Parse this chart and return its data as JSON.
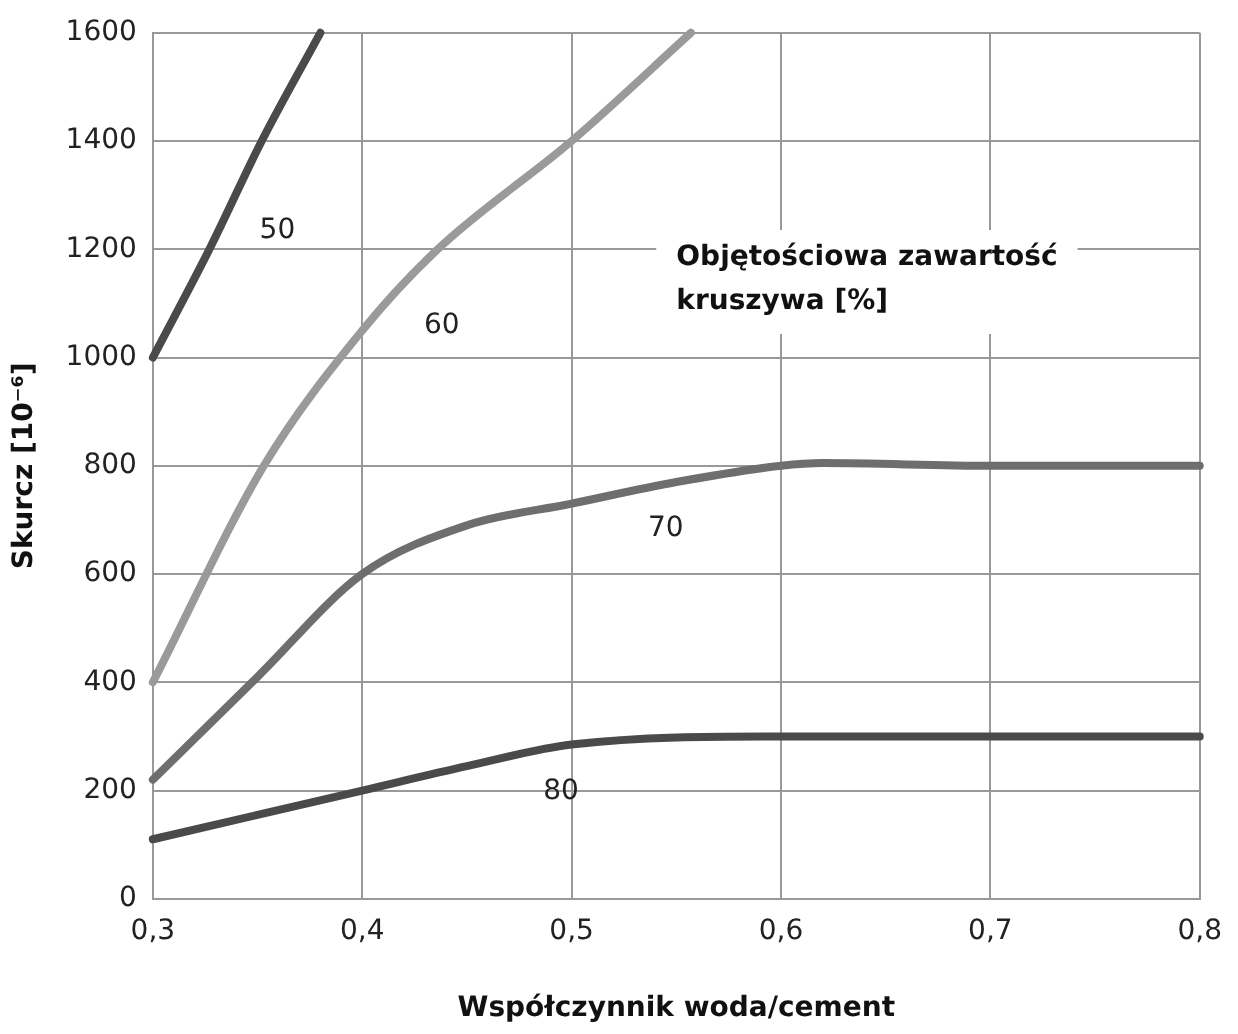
{
  "chart_data": {
    "type": "line",
    "xlabel": "Współczynnik woda/cement",
    "ylabel": "Skurcz [10⁻⁶]",
    "legend_title": "Objętościowa zawartość kruszywa [%]",
    "xlim": [
      0.3,
      0.8
    ],
    "xticks": [
      {
        "value": 0.3,
        "label": "0,3"
      },
      {
        "value": 0.4,
        "label": "0,4"
      },
      {
        "value": 0.5,
        "label": "0,5"
      },
      {
        "value": 0.6,
        "label": "0,6"
      },
      {
        "value": 0.7,
        "label": "0,7"
      },
      {
        "value": 0.8,
        "label": "0,8"
      }
    ],
    "ylim": [
      0,
      1600
    ],
    "yticks": [
      0,
      200,
      400,
      600,
      800,
      1000,
      1200,
      1400,
      1600
    ],
    "grid": true,
    "legend": false,
    "marker": "none",
    "line_style": "solid",
    "series": [
      {
        "name": "50",
        "color": "#4a4a4a",
        "x": [
          0.3,
          0.327,
          0.352,
          0.38
        ],
        "values": [
          1000,
          1200,
          1400,
          1600
        ]
      },
      {
        "name": "60",
        "color": "#9a9a9a",
        "x": [
          0.3,
          0.353,
          0.4,
          0.436,
          0.5,
          0.557
        ],
        "values": [
          400,
          800,
          1050,
          1200,
          1400,
          1600
        ]
      },
      {
        "name": "70",
        "color": "#6e6e6e",
        "x": [
          0.3,
          0.35,
          0.4,
          0.45,
          0.5,
          0.55,
          0.6,
          0.62,
          0.7,
          0.8
        ],
        "values": [
          220,
          410,
          600,
          690,
          730,
          770,
          800,
          805,
          800,
          800
        ]
      },
      {
        "name": "80",
        "color": "#4a4a4a",
        "x": [
          0.3,
          0.35,
          0.4,
          0.45,
          0.5,
          0.6,
          0.7,
          0.8
        ],
        "values": [
          110,
          155,
          200,
          245,
          285,
          300,
          300,
          300
        ]
      }
    ]
  }
}
